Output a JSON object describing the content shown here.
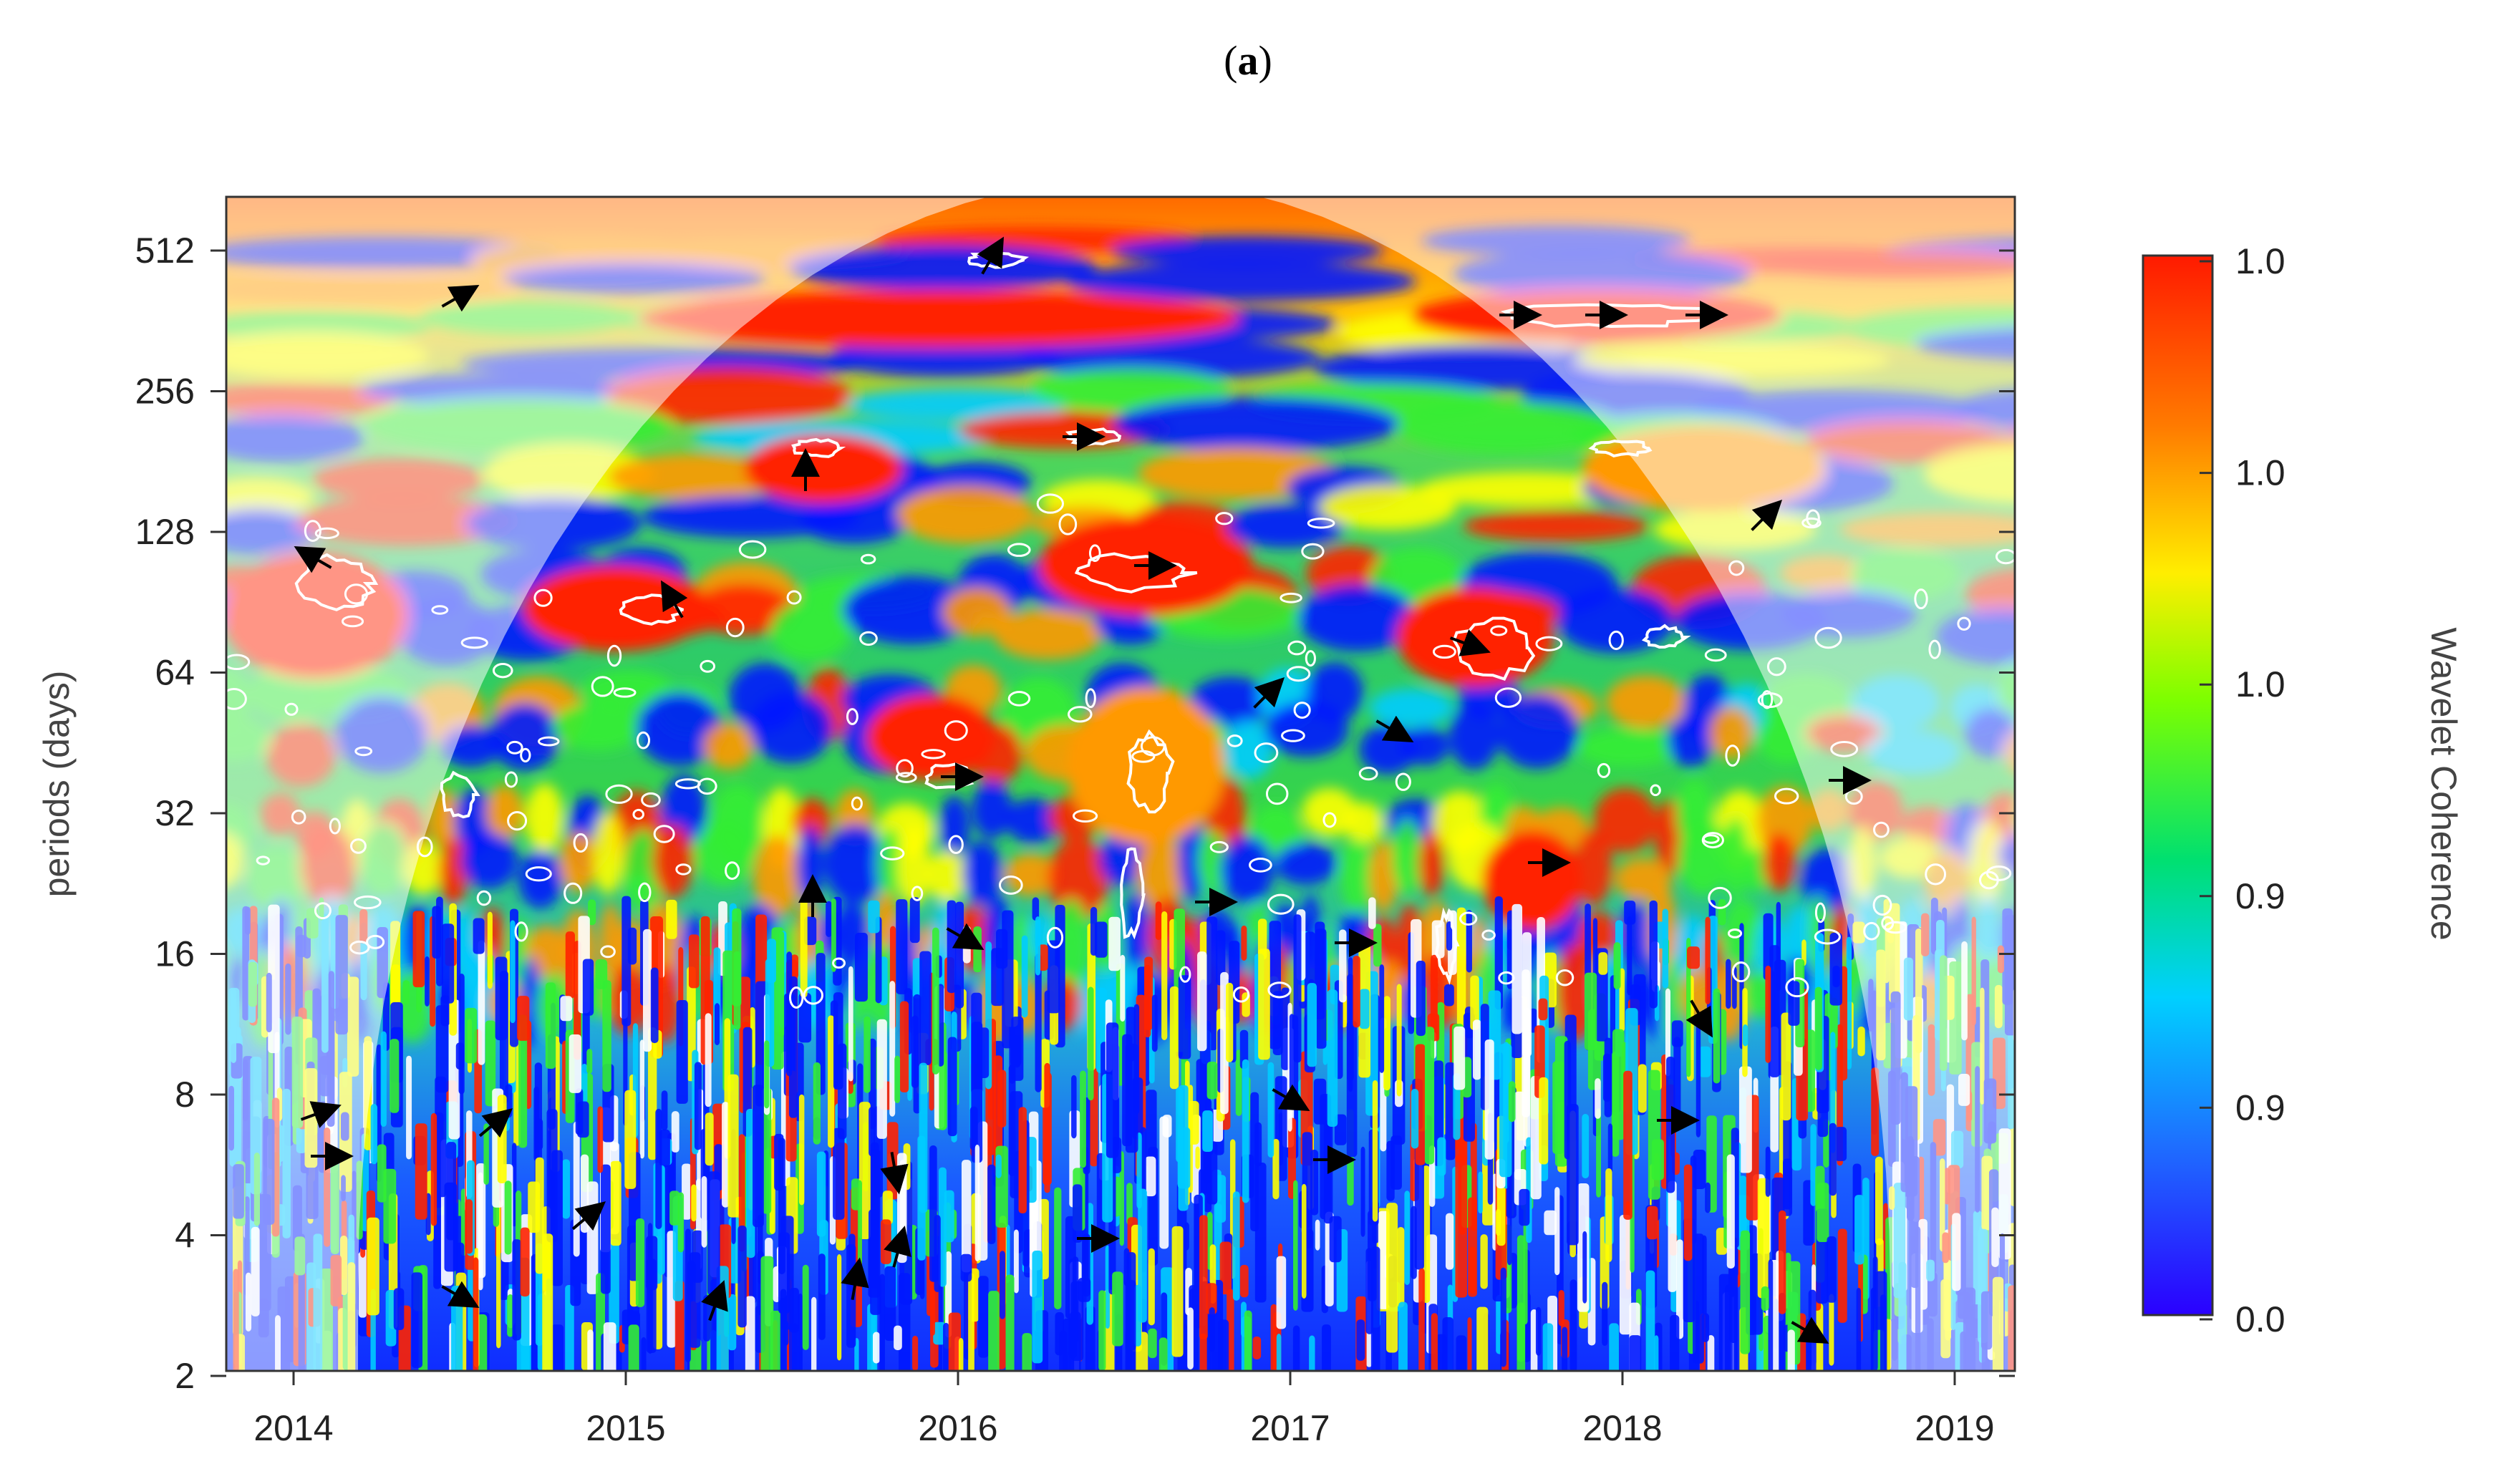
{
  "figure": {
    "caption_open": "(",
    "caption_letter": "a",
    "caption_close": ")"
  },
  "chart_data": {
    "type": "heatmap",
    "title": "",
    "xlabel": "",
    "ylabel": "periods (days)",
    "x_ticks": [
      "2014",
      "2015",
      "2016",
      "2017",
      "2018",
      "2019"
    ],
    "xlim": [
      2013.75,
      2019.05
    ],
    "y_ticks": [
      2,
      4,
      8,
      16,
      32,
      64,
      128,
      256,
      512
    ],
    "y_scale": "log2",
    "ylim": [
      2,
      620
    ],
    "colorbar": {
      "label": "Wavelet Coherence",
      "tick_labels": [
        "1.0",
        "1.0",
        "1.0",
        "0.9",
        "0.9",
        "0.0"
      ],
      "colors": [
        "#ff1a00",
        "#ff7a00",
        "#ffee00",
        "#7cff00",
        "#00e070",
        "#00d0ff",
        "#1e6eff",
        "#2a00ff"
      ]
    },
    "cone_of_influence": "shaded outside the arc",
    "significance_contours": "white",
    "phase_arrows": "black",
    "palette": {
      "high": "#ff2200",
      "mid_high": "#ff9900",
      "mid": "#ffff00",
      "mid_low": "#33ee33",
      "low_mid": "#00ccff",
      "low": "#0018ff",
      "coi_overlay": "#ffffff",
      "frame": "#333333"
    }
  }
}
